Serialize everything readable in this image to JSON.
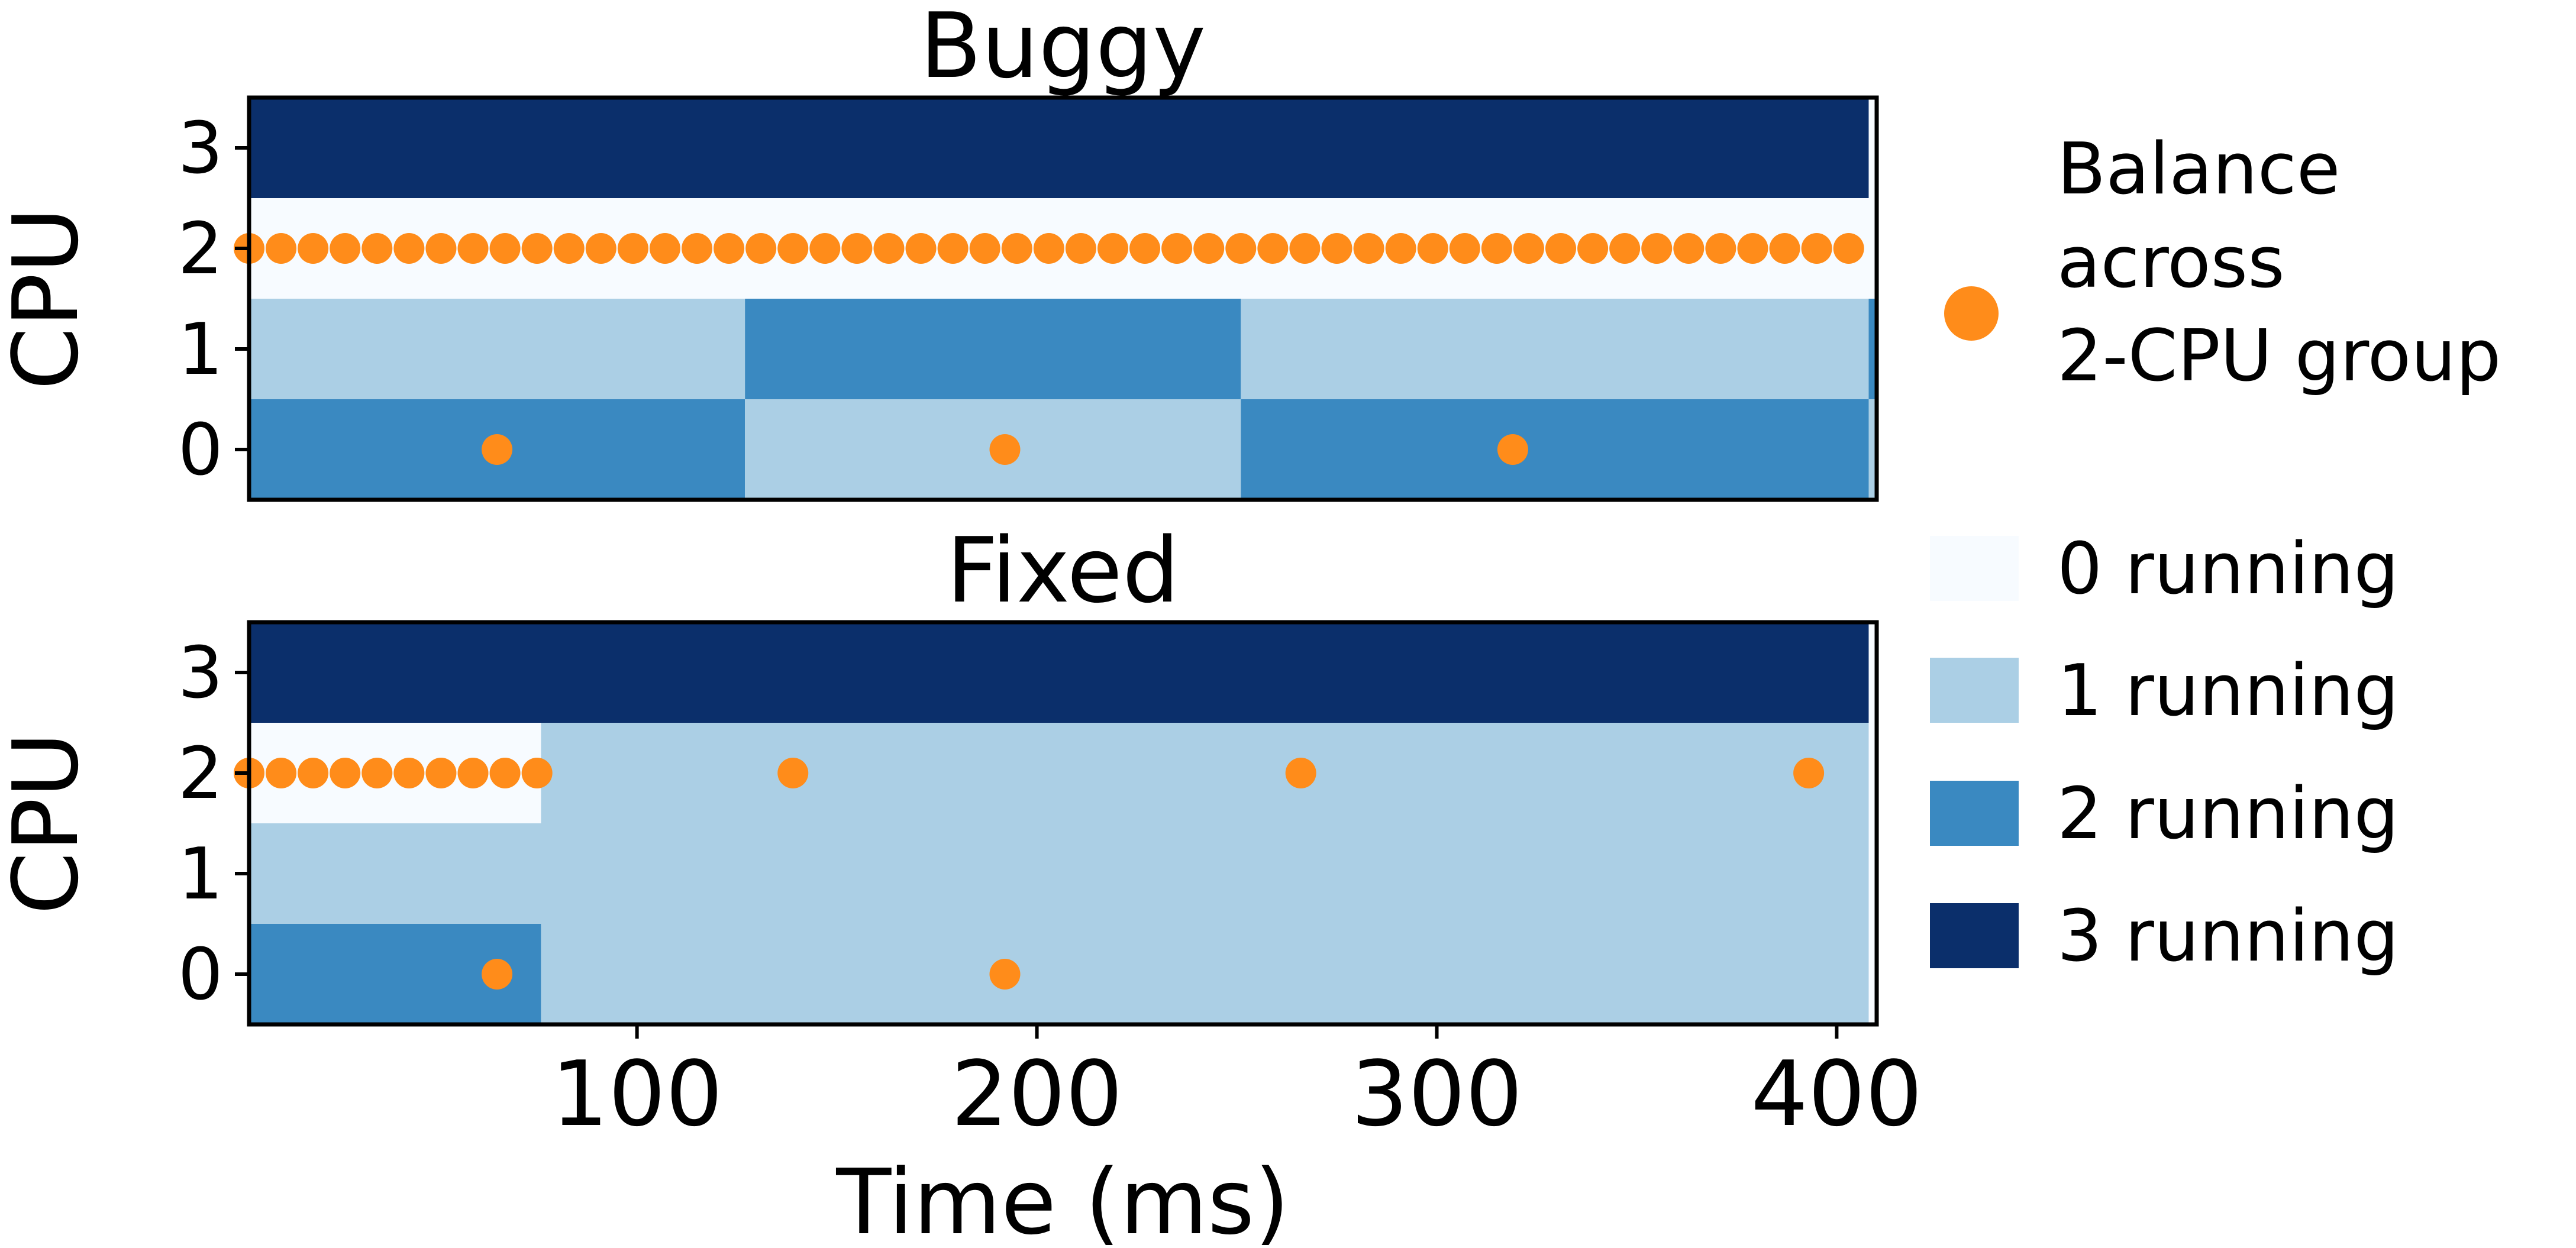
{
  "colors": {
    "running_0": "#f7fbff",
    "running_1": "#abcfe5",
    "running_2": "#3a89c1",
    "running_3": "#0b2f6b",
    "balance_marker": "#ff8c1a",
    "axis": "#000000"
  },
  "legend": {
    "balance_label_lines": [
      "Balance",
      "across",
      "2-CPU group"
    ],
    "running_labels": [
      "0 running",
      "1 running",
      "2 running",
      "3 running"
    ]
  },
  "chart_data": [
    {
      "type": "heatmap",
      "title": "Buggy",
      "ylabel": "CPU",
      "xlabel": "",
      "xlim": [
        3,
        410
      ],
      "ylim": [
        -0.5,
        3.5
      ],
      "y_ticks": [
        "0",
        "1",
        "2",
        "3"
      ],
      "x_ticks": [],
      "cells": [
        {
          "cpu": 3,
          "x0": 3,
          "x1": 408,
          "running": 3
        },
        {
          "cpu": 3,
          "x0": 408,
          "x1": 410,
          "running": 0
        },
        {
          "cpu": 2,
          "x0": 3,
          "x1": 410,
          "running": 0
        },
        {
          "cpu": 1,
          "x0": 3,
          "x1": 127,
          "running": 1
        },
        {
          "cpu": 1,
          "x0": 127,
          "x1": 251,
          "running": 2
        },
        {
          "cpu": 1,
          "x0": 251,
          "x1": 408,
          "running": 1
        },
        {
          "cpu": 1,
          "x0": 408,
          "x1": 410,
          "running": 2
        },
        {
          "cpu": 0,
          "x0": 3,
          "x1": 127,
          "running": 2
        },
        {
          "cpu": 0,
          "x0": 127,
          "x1": 251,
          "running": 1
        },
        {
          "cpu": 0,
          "x0": 251,
          "x1": 408,
          "running": 2
        },
        {
          "cpu": 0,
          "x0": 408,
          "x1": 410,
          "running": 1
        }
      ],
      "balance_events": [
        {
          "cpu": 2,
          "x_start": 3,
          "x_step": 8,
          "x_end": 407
        },
        {
          "cpu": 0,
          "x": [
            65,
            192,
            319
          ]
        }
      ]
    },
    {
      "type": "heatmap",
      "title": "Fixed",
      "ylabel": "CPU",
      "xlabel": "Time (ms)",
      "xlim": [
        3,
        410
      ],
      "ylim": [
        -0.5,
        3.5
      ],
      "y_ticks": [
        "0",
        "1",
        "2",
        "3"
      ],
      "x_ticks": [
        "100",
        "200",
        "300",
        "400"
      ],
      "cells": [
        {
          "cpu": 3,
          "x0": 3,
          "x1": 408,
          "running": 3
        },
        {
          "cpu": 3,
          "x0": 408,
          "x1": 410,
          "running": 0
        },
        {
          "cpu": 2,
          "x0": 3,
          "x1": 76,
          "running": 0
        },
        {
          "cpu": 2,
          "x0": 76,
          "x1": 408,
          "running": 1
        },
        {
          "cpu": 2,
          "x0": 408,
          "x1": 410,
          "running": 0
        },
        {
          "cpu": 1,
          "x0": 3,
          "x1": 408,
          "running": 1
        },
        {
          "cpu": 1,
          "x0": 408,
          "x1": 410,
          "running": 0
        },
        {
          "cpu": 0,
          "x0": 3,
          "x1": 76,
          "running": 2
        },
        {
          "cpu": 0,
          "x0": 76,
          "x1": 408,
          "running": 1
        },
        {
          "cpu": 0,
          "x0": 408,
          "x1": 410,
          "running": 0
        }
      ],
      "balance_events": [
        {
          "cpu": 2,
          "x_start": 3,
          "x_step": 8,
          "x_end": 75
        },
        {
          "cpu": 2,
          "x": [
            139,
            266,
            393
          ]
        },
        {
          "cpu": 0,
          "x": [
            65,
            192
          ]
        }
      ]
    }
  ]
}
